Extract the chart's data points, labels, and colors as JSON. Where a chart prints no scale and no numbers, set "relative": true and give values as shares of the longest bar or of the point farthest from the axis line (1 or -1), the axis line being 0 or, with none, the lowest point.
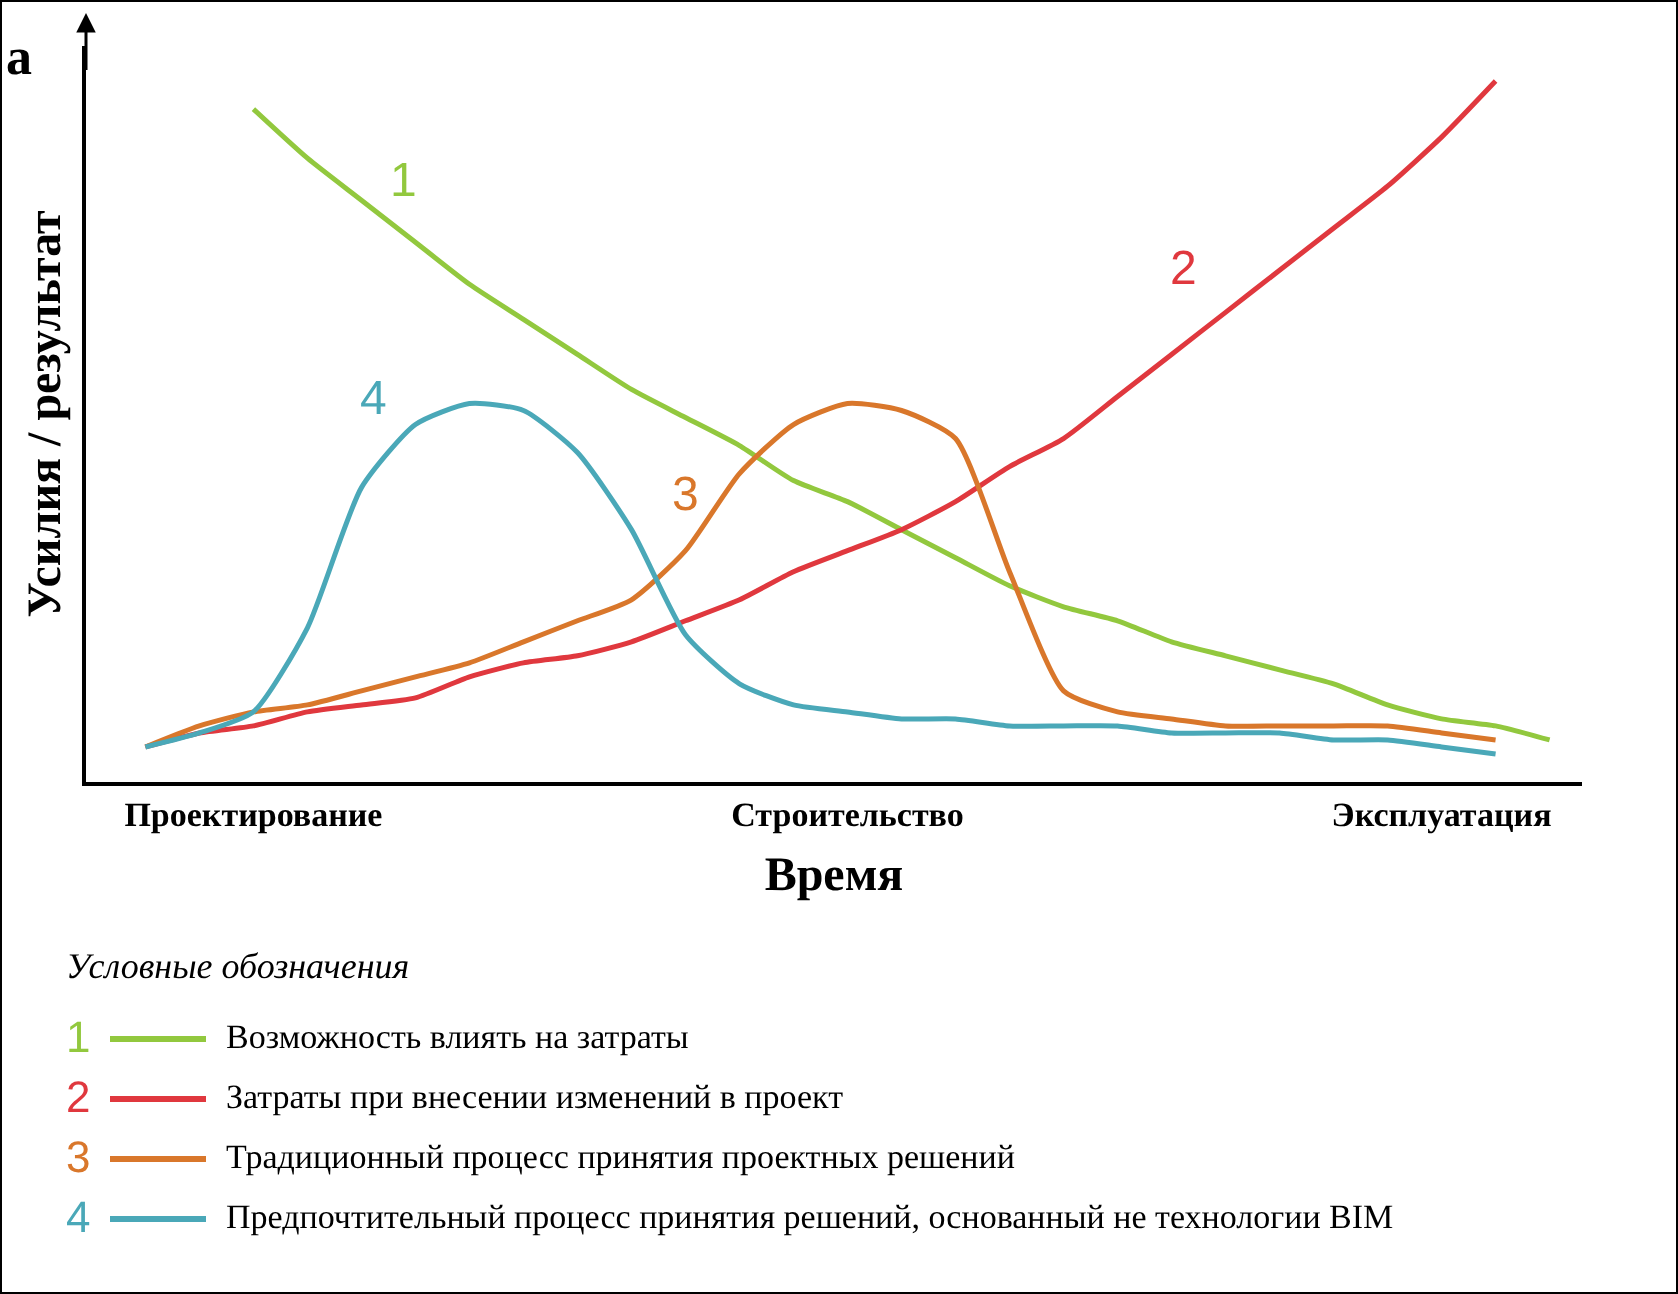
{
  "chart_data": {
    "type": "line",
    "relative": true,
    "xlabel": "Время",
    "ylabel": "Усилия / результат",
    "legend_title": "Условные обозначения",
    "legend": "bottom",
    "marker": "none",
    "line_style": "solid",
    "grid": false,
    "categories": [
      null,
      null,
      "Проектирование",
      null,
      null,
      null,
      null,
      null,
      null,
      null,
      null,
      null,
      null,
      "Строительство",
      null,
      null,
      null,
      null,
      null,
      null,
      null,
      null,
      null,
      null,
      "Эксплуатация",
      null,
      null
    ],
    "series": [
      {
        "name": "Возможность влиять на затраты",
        "color": "#92c83e",
        "values": [
          null,
          null,
          0.96,
          0.89,
          0.83,
          0.77,
          0.71,
          0.66,
          0.61,
          0.56,
          0.52,
          0.48,
          0.43,
          0.4,
          0.36,
          0.32,
          0.28,
          0.25,
          0.23,
          0.2,
          0.18,
          0.16,
          0.14,
          0.11,
          0.09,
          0.08,
          0.06
        ]
      },
      {
        "name": "Затраты при внесении изменений в проект",
        "color": "#e0383e",
        "values": [
          0.05,
          0.07,
          0.08,
          0.1,
          0.11,
          0.12,
          0.15,
          0.17,
          0.18,
          0.2,
          0.23,
          0.26,
          0.3,
          0.33,
          0.36,
          0.4,
          0.45,
          0.49,
          0.55,
          0.61,
          0.67,
          0.73,
          0.79,
          0.85,
          0.92,
          1.0,
          null
        ]
      },
      {
        "name": "Традиционный процесс принятия проектных решений",
        "color": "#d9772b",
        "values": [
          0.05,
          0.08,
          0.1,
          0.11,
          0.13,
          0.15,
          0.17,
          0.2,
          0.23,
          0.26,
          0.33,
          0.44,
          0.51,
          0.54,
          0.53,
          0.49,
          0.3,
          0.13,
          0.1,
          0.09,
          0.08,
          0.08,
          0.08,
          0.08,
          0.07,
          0.06,
          null
        ]
      },
      {
        "name": "Предпочтительный процесс принятия решений, основанный не технологии BIM",
        "color": "#4aa8b8",
        "values": [
          0.05,
          0.07,
          0.1,
          0.22,
          0.42,
          0.51,
          0.54,
          0.53,
          0.47,
          0.36,
          0.21,
          0.14,
          0.11,
          0.1,
          0.09,
          0.09,
          0.08,
          0.08,
          0.08,
          0.07,
          0.07,
          0.07,
          0.06,
          0.06,
          0.05,
          0.04,
          null
        ]
      }
    ],
    "annotations": [
      "a",
      "1",
      "2",
      "3",
      "4"
    ]
  }
}
